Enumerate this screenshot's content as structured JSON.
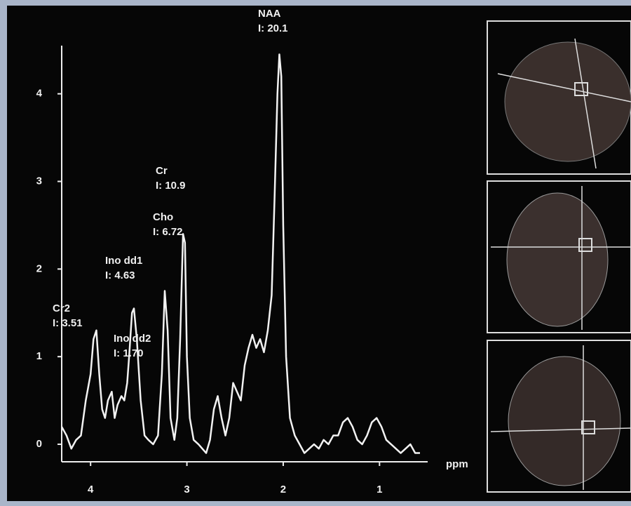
{
  "chart_data": {
    "type": "line",
    "xlabel": "ppm",
    "xlim": [
      4.3,
      0.5
    ],
    "ylim": [
      -0.2,
      4.55
    ],
    "xticks": [
      4,
      3,
      2,
      1
    ],
    "yticks": [
      0,
      1,
      2,
      3,
      4
    ],
    "annotations": [
      {
        "label": "NAA",
        "text": "I: 20.1"
      },
      {
        "label": "Cr",
        "text": "I: 10.9"
      },
      {
        "label": "Cho",
        "text": "I: 6.72"
      },
      {
        "label": "Ino dd1",
        "text": "I: 4.63"
      },
      {
        "label": "Cr2",
        "text": "I: 3.51"
      },
      {
        "label": "Ino dd2",
        "text": "I: 1.70"
      }
    ],
    "x": [
      4.3,
      4.25,
      4.2,
      4.15,
      4.1,
      4.05,
      4.0,
      3.97,
      3.94,
      3.91,
      3.88,
      3.85,
      3.82,
      3.78,
      3.75,
      3.72,
      3.68,
      3.65,
      3.62,
      3.6,
      3.57,
      3.55,
      3.52,
      3.48,
      3.44,
      3.4,
      3.35,
      3.3,
      3.26,
      3.23,
      3.2,
      3.17,
      3.13,
      3.1,
      3.07,
      3.04,
      3.02,
      3.0,
      2.97,
      2.93,
      2.88,
      2.84,
      2.8,
      2.76,
      2.72,
      2.68,
      2.64,
      2.6,
      2.56,
      2.52,
      2.48,
      2.44,
      2.4,
      2.36,
      2.32,
      2.28,
      2.24,
      2.2,
      2.16,
      2.12,
      2.09,
      2.06,
      2.04,
      2.02,
      2.0,
      1.97,
      1.93,
      1.88,
      1.83,
      1.78,
      1.73,
      1.68,
      1.63,
      1.58,
      1.53,
      1.48,
      1.43,
      1.38,
      1.33,
      1.28,
      1.23,
      1.18,
      1.13,
      1.08,
      1.03,
      0.98,
      0.93,
      0.88,
      0.83,
      0.78,
      0.73,
      0.68,
      0.63,
      0.58
    ],
    "series": [
      {
        "color": "#f2f2f2",
        "values": [
          0.2,
          0.1,
          -0.05,
          0.05,
          0.1,
          0.5,
          0.8,
          1.2,
          1.3,
          0.8,
          0.4,
          0.3,
          0.5,
          0.6,
          0.3,
          0.45,
          0.55,
          0.5,
          0.7,
          1.0,
          1.5,
          1.55,
          1.2,
          0.5,
          0.1,
          0.05,
          0.0,
          0.1,
          0.8,
          1.75,
          1.3,
          0.3,
          0.05,
          0.3,
          1.2,
          2.4,
          2.3,
          1.0,
          0.3,
          0.05,
          0.0,
          -0.05,
          -0.1,
          0.05,
          0.4,
          0.55,
          0.3,
          0.1,
          0.3,
          0.7,
          0.6,
          0.5,
          0.9,
          1.1,
          1.25,
          1.1,
          1.2,
          1.05,
          1.3,
          1.7,
          2.8,
          4.0,
          4.45,
          4.2,
          2.5,
          1.0,
          0.3,
          0.1,
          0.0,
          -0.1,
          -0.05,
          0.0,
          -0.05,
          0.05,
          0.0,
          0.1,
          0.1,
          0.25,
          0.3,
          0.2,
          0.05,
          0.0,
          0.1,
          0.25,
          0.3,
          0.2,
          0.05,
          0.0,
          -0.05,
          -0.1,
          -0.05,
          0.0,
          -0.1,
          -0.1
        ]
      }
    ]
  }
}
